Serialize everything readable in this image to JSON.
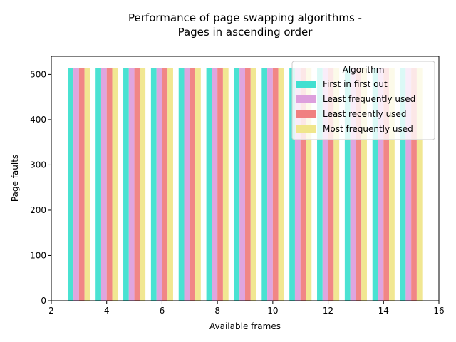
{
  "chart_data": {
    "type": "bar",
    "title": [
      "Performance of page swapping algorithms -",
      "Pages in ascending order"
    ],
    "xlabel": "Available frames",
    "ylabel": "Page faults",
    "x": [
      3,
      4,
      5,
      6,
      7,
      8,
      9,
      10,
      11,
      12,
      13,
      14,
      15
    ],
    "xlim": [
      2,
      16
    ],
    "ylim": [
      0,
      540
    ],
    "xticks": [
      2,
      4,
      6,
      8,
      10,
      12,
      14,
      16
    ],
    "yticks": [
      0,
      100,
      200,
      300,
      400,
      500
    ],
    "legend": {
      "title": "Algorithm",
      "placement": "top-right"
    },
    "series": [
      {
        "name": "First in first out",
        "color": "#40e0d0",
        "values": [
          514,
          514,
          514,
          514,
          514,
          514,
          514,
          514,
          514,
          514,
          514,
          514,
          514
        ]
      },
      {
        "name": "Least frequently used",
        "color": "#dda0dd",
        "values": [
          514,
          514,
          514,
          514,
          514,
          514,
          514,
          514,
          514,
          514,
          514,
          514,
          514
        ]
      },
      {
        "name": "Least recently used",
        "color": "#f08080",
        "values": [
          514,
          514,
          514,
          514,
          514,
          514,
          514,
          514,
          514,
          514,
          514,
          514,
          514
        ]
      },
      {
        "name": "Most frequently used",
        "color": "#f0e68c",
        "values": [
          514,
          514,
          514,
          514,
          514,
          514,
          514,
          514,
          514,
          514,
          514,
          514,
          514
        ]
      }
    ]
  }
}
